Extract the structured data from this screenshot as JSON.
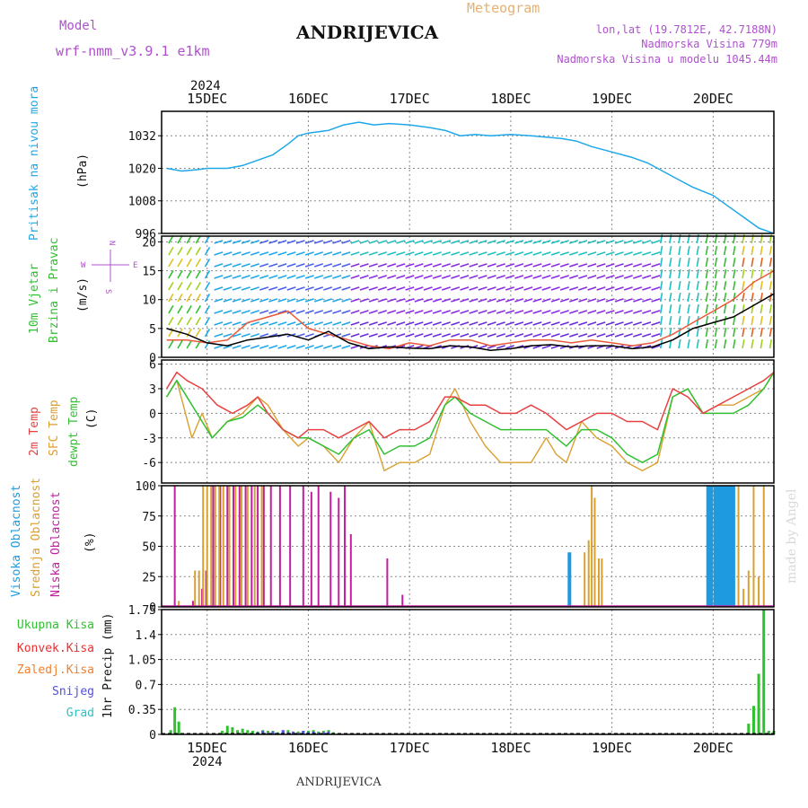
{
  "header": {
    "model_label": "Model",
    "model_name": "wrf-nmm_v3.9.1  e1km",
    "location": "ANDRIJEVICA",
    "meteogram_label": "Meteogram",
    "lonlat": "lon,lat (19.7812E, 42.7188N)",
    "elevation": "Nadmorska Visina 779m",
    "model_elevation": "Nadmorska Visina u modelu 1045.44m",
    "year": "2024",
    "footer_location": "ANDRIJEVICA",
    "credit": "made by Angel"
  },
  "colors": {
    "pressure": "#1ea8e8",
    "wind_speed": "#000000",
    "wind_gust": "#e85a3a",
    "t2m": "#e84040",
    "sfc": "#d9a030",
    "dewpt": "#30c030",
    "high_cloud": "#1e9be0",
    "mid_cloud": "#d9a030",
    "low_cloud": "#c020a0",
    "total_precip": "#30c030",
    "conv_precip": "#e83030",
    "frozen_precip": "#f08030",
    "snow": "#5050e0",
    "hail": "#30c0c0",
    "model_label": "#b050d0",
    "meteogram_label": "#e8b070",
    "info": "#b050d0"
  },
  "chart_data": [
    {
      "type": "line",
      "panel": "pressure",
      "ylabel_color_label": "Pritisak na nivou mora",
      "unit": "(hPa)",
      "x_ticks": [
        "15DEC",
        "16DEC",
        "17DEC",
        "18DEC",
        "19DEC",
        "20DEC"
      ],
      "yticks": [
        "996",
        "1008",
        "1020",
        "1032"
      ],
      "ylim": [
        996,
        1041
      ],
      "grid": true,
      "series": [
        {
          "values_x": [
            14.6,
            14.75,
            14.9,
            15.0,
            15.2,
            15.35,
            15.5,
            15.65,
            15.8,
            15.9,
            16.0,
            16.2,
            16.35,
            16.5,
            16.65,
            16.8,
            17.0,
            17.2,
            17.35,
            17.5,
            17.65,
            17.8,
            18.0,
            18.2,
            18.35,
            18.5,
            18.65,
            18.8,
            19.0,
            19.2,
            19.35,
            19.5,
            19.65,
            19.8,
            20.0,
            20.15,
            20.3,
            20.45,
            20.6
          ],
          "values": [
            1020,
            1019,
            1019.5,
            1020,
            1020,
            1021,
            1023,
            1025,
            1029,
            1032,
            1033,
            1034,
            1036,
            1037,
            1036,
            1036.5,
            1036,
            1035,
            1034,
            1032,
            1032.5,
            1032,
            1032.5,
            1032,
            1031.5,
            1031,
            1030,
            1028,
            1026,
            1024,
            1022,
            1019,
            1016,
            1013,
            1010,
            1006,
            1002,
            998,
            996
          ]
        }
      ]
    },
    {
      "type": "line",
      "panel": "wind",
      "ylabel_color_label_1": "10m Vjetar",
      "ylabel_color_label_2": "Brzina i Pravac",
      "unit": "(m/s)",
      "yticks": [
        "0",
        "5",
        "10",
        "15",
        "20"
      ],
      "ylim": [
        0,
        21
      ],
      "grid": true,
      "compass": {
        "n": "N",
        "s": "S",
        "e": "E",
        "w": "W"
      },
      "series": [
        {
          "name": "speed",
          "values_x": [
            14.6,
            14.8,
            15.0,
            15.2,
            15.4,
            15.6,
            15.8,
            16.0,
            16.2,
            16.4,
            16.6,
            16.8,
            17.0,
            17.2,
            17.4,
            17.6,
            17.8,
            18.0,
            18.2,
            18.4,
            18.6,
            18.8,
            19.0,
            19.2,
            19.4,
            19.6,
            19.8,
            20.0,
            20.2,
            20.4,
            20.6
          ],
          "values": [
            5,
            4,
            2.5,
            2,
            3,
            3.5,
            4,
            3,
            4.5,
            2.5,
            1.5,
            1.8,
            1.6,
            1.5,
            2,
            1.8,
            1.2,
            1.5,
            2,
            2.2,
            1.8,
            2,
            2,
            1.5,
            1.8,
            3,
            5,
            6,
            7,
            9,
            11
          ]
        },
        {
          "name": "gust",
          "values_x": [
            14.6,
            14.8,
            15.0,
            15.2,
            15.4,
            15.6,
            15.8,
            16.0,
            16.2,
            16.4,
            16.6,
            16.8,
            17.0,
            17.2,
            17.4,
            17.6,
            17.8,
            18.0,
            18.2,
            18.4,
            18.6,
            18.8,
            19.0,
            19.2,
            19.4,
            19.6,
            19.8,
            20.0,
            20.2,
            20.4,
            20.6
          ],
          "values": [
            3,
            3,
            2.5,
            3,
            6,
            7,
            8,
            5,
            4,
            3,
            2,
            1.5,
            2.5,
            2,
            3,
            3,
            2,
            2.5,
            3,
            3,
            2.5,
            3,
            2.5,
            2,
            2.5,
            4,
            6,
            8,
            10,
            13,
            15
          ]
        }
      ]
    },
    {
      "type": "line",
      "panel": "temperature",
      "ylabel_color_label_1": "2m Temp",
      "ylabel_color_label_2": "SFC Temp",
      "ylabel_color_label_3": "dewpt Temp",
      "unit": "(C)",
      "yticks": [
        "-6",
        "-3",
        "0",
        "3",
        "6"
      ],
      "ylim": [
        -8.5,
        6.5
      ],
      "grid": true,
      "series": [
        {
          "name": "2m Temp",
          "values_x": [
            14.6,
            14.7,
            14.8,
            14.95,
            15.1,
            15.25,
            15.4,
            15.5,
            15.6,
            15.75,
            15.9,
            16.0,
            16.15,
            16.3,
            16.45,
            16.6,
            16.75,
            16.9,
            17.05,
            17.2,
            17.35,
            17.45,
            17.6,
            17.75,
            17.9,
            18.05,
            18.2,
            18.35,
            18.45,
            18.55,
            18.7,
            18.85,
            19.0,
            19.15,
            19.3,
            19.45,
            19.6,
            19.75,
            19.9,
            20.05,
            20.2,
            20.35,
            20.5,
            20.6
          ],
          "values": [
            3,
            5,
            4,
            3,
            1,
            0,
            1,
            2,
            0,
            -2,
            -3,
            -2,
            -2,
            -3,
            -2,
            -1,
            -3,
            -2,
            -2,
            -1,
            2,
            2,
            1,
            1,
            0,
            0,
            1,
            0,
            -1,
            -2,
            -1,
            0,
            0,
            -1,
            -1,
            -2,
            3,
            2,
            0,
            1,
            2,
            3,
            4,
            5
          ]
        },
        {
          "name": "SFC Temp",
          "values_x": [
            14.6,
            14.7,
            14.85,
            14.95,
            15.05,
            15.2,
            15.35,
            15.5,
            15.6,
            15.75,
            15.9,
            16.0,
            16.15,
            16.3,
            16.45,
            16.6,
            16.75,
            16.9,
            17.05,
            17.2,
            17.35,
            17.45,
            17.6,
            17.75,
            17.9,
            18.05,
            18.2,
            18.35,
            18.45,
            18.55,
            18.7,
            18.85,
            19.0,
            19.15,
            19.3,
            19.45,
            19.6,
            19.75,
            19.9,
            20.05,
            20.2,
            20.35,
            20.5,
            20.6
          ],
          "values": [
            2,
            4,
            -3,
            0,
            -3,
            -1,
            0,
            2,
            1,
            -2,
            -4,
            -3,
            -4,
            -6,
            -3,
            -1,
            -7,
            -6,
            -6,
            -5,
            1,
            3,
            -1,
            -4,
            -6,
            -6,
            -6,
            -3,
            -5,
            -6,
            -1,
            -3,
            -4,
            -6,
            -7,
            -6,
            2,
            3,
            0,
            1,
            1,
            2,
            3,
            5
          ]
        },
        {
          "name": "dewpt Temp",
          "values_x": [
            14.6,
            14.7,
            14.85,
            14.95,
            15.05,
            15.2,
            15.35,
            15.5,
            15.6,
            15.75,
            15.9,
            16.0,
            16.15,
            16.3,
            16.45,
            16.6,
            16.75,
            16.9,
            17.05,
            17.2,
            17.35,
            17.45,
            17.6,
            17.75,
            17.9,
            18.05,
            18.2,
            18.35,
            18.45,
            18.55,
            18.7,
            18.85,
            19.0,
            19.15,
            19.3,
            19.45,
            19.6,
            19.75,
            19.9,
            20.05,
            20.2,
            20.35,
            20.5,
            20.6
          ],
          "values": [
            2,
            4,
            1,
            -1,
            -3,
            -1,
            -0.5,
            1,
            0,
            -2,
            -3,
            -3,
            -4,
            -5,
            -3,
            -2,
            -5,
            -4,
            -4,
            -3,
            1,
            2,
            0,
            -1,
            -2,
            -2,
            -2,
            -2,
            -3,
            -4,
            -2,
            -2,
            -3,
            -5,
            -6,
            -5,
            2,
            3,
            0,
            0,
            0,
            1,
            3,
            5
          ]
        }
      ]
    },
    {
      "type": "bar",
      "panel": "cloud",
      "ylabel_color_label_1": "Visoka Oblacnost",
      "ylabel_color_label_2": "Srednja Oblacnost",
      "ylabel_color_label_3": "Niska Oblacnost",
      "unit": "(%)",
      "yticks": [
        "0",
        "25",
        "50",
        "75",
        "100"
      ],
      "ylim": [
        0,
        100
      ],
      "grid": true,
      "series": [
        {
          "name": "Niska Oblacnost",
          "x": [
            14.68,
            14.86,
            14.95,
            14.99,
            15.06,
            15.13,
            15.2,
            15.26,
            15.32,
            15.38,
            15.44,
            15.5,
            15.56,
            15.63,
            15.72,
            15.82,
            15.95,
            16.03,
            16.1,
            16.22,
            16.3,
            16.36,
            16.42,
            16.78,
            16.93
          ],
          "values": [
            100,
            5,
            15,
            30,
            100,
            100,
            100,
            100,
            100,
            100,
            100,
            100,
            100,
            100,
            100,
            100,
            100,
            95,
            100,
            95,
            90,
            100,
            60,
            40,
            10
          ]
        },
        {
          "name": "Srednja Oblacnost",
          "x": [
            14.72,
            14.88,
            14.92,
            14.96,
            15.0,
            15.04,
            15.08,
            15.12,
            15.16,
            15.22,
            15.28,
            15.34,
            15.4,
            15.47,
            15.54,
            18.73,
            18.77,
            18.8,
            18.83,
            18.87,
            18.9,
            20.25,
            20.3,
            20.35,
            20.4,
            20.45,
            20.5
          ],
          "values": [
            5,
            30,
            30,
            100,
            100,
            100,
            100,
            100,
            100,
            100,
            100,
            100,
            100,
            100,
            100,
            45,
            55,
            100,
            90,
            40,
            40,
            100,
            15,
            30,
            100,
            25,
            100
          ]
        },
        {
          "name": "Visoka Oblacnost",
          "x": [
            18.58,
            19.95,
            19.98,
            20.02,
            20.05,
            20.08,
            20.11,
            20.14,
            20.17,
            20.2
          ],
          "values": [
            45,
            100,
            100,
            100,
            100,
            100,
            100,
            100,
            100,
            100
          ]
        }
      ]
    },
    {
      "type": "bar",
      "panel": "precip",
      "ylabel_legend": [
        "Ukupna Kisa",
        "Konvek.Kisa",
        "Zaledj.Kisa",
        "Snijeg",
        "Grad"
      ],
      "unit": "1hr Precip (mm)",
      "yticks": [
        "0",
        "0.35",
        "0.7",
        "1.05",
        "1.4",
        "1.75"
      ],
      "ylim": [
        0,
        1.75
      ],
      "grid": true,
      "series": [
        {
          "name": "Ukupna Kisa",
          "x": [
            14.64,
            14.68,
            14.72,
            15.15,
            15.2,
            15.25,
            15.3,
            15.35,
            15.4,
            15.45,
            15.5,
            15.55,
            15.6,
            15.65,
            15.7,
            15.75,
            15.8,
            15.85,
            15.9,
            15.95,
            16.0,
            16.05,
            16.1,
            16.15,
            16.2,
            16.25,
            20.35,
            20.4,
            20.45,
            20.5,
            20.55,
            20.6
          ],
          "values": [
            0.06,
            0.38,
            0.18,
            0.05,
            0.12,
            0.1,
            0.06,
            0.08,
            0.06,
            0.05,
            0.04,
            0.06,
            0.05,
            0.05,
            0.03,
            0.05,
            0.06,
            0.03,
            0.04,
            0.05,
            0.05,
            0.06,
            0.04,
            0.05,
            0.06,
            0.03,
            0.15,
            0.4,
            0.85,
            1.75,
            0.05,
            0.05
          ]
        },
        {
          "name": "Snijeg",
          "x": [
            15.5,
            15.55,
            15.6,
            15.65,
            15.7,
            15.75,
            15.8,
            15.85,
            15.9,
            15.95,
            16.0,
            16.05,
            16.1,
            16.15,
            16.2
          ],
          "values": [
            0.03,
            0.05,
            0.02,
            0.04,
            0.02,
            0.06,
            0.03,
            0.04,
            0.02,
            0.05,
            0.03,
            0.04,
            0.02,
            0.03,
            0.04
          ]
        }
      ]
    }
  ]
}
